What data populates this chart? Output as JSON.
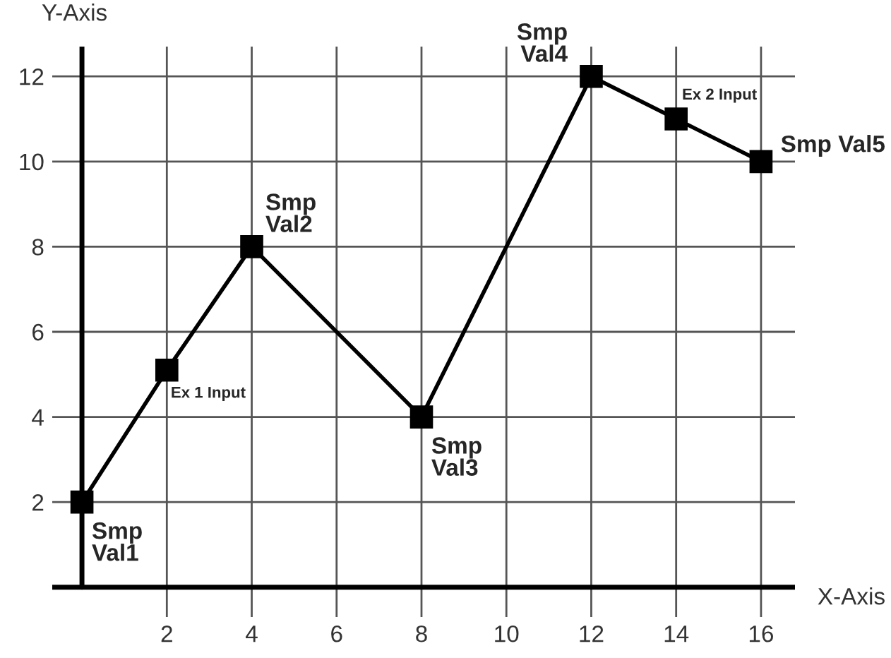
{
  "chart_data": {
    "type": "line",
    "xlabel": "X-Axis",
    "ylabel": "Y-Axis",
    "x": [
      0,
      2,
      4,
      8,
      12,
      14,
      16
    ],
    "series": [
      {
        "color": "#000000",
        "values": [
          2,
          5.1,
          8,
          4,
          12,
          11,
          10
        ]
      }
    ],
    "marker": "square",
    "line_style": "solid",
    "xlim": [
      -0.7,
      16.8
    ],
    "ylim": [
      -0.7,
      12.7
    ],
    "xticks": [
      2,
      4,
      6,
      8,
      10,
      12,
      14,
      16
    ],
    "yticks": [
      2,
      4,
      6,
      8,
      10,
      12
    ],
    "grid": true,
    "legend": false,
    "annotations": [
      {
        "text": "Smp\nVal1",
        "x": 0,
        "y": 2
      },
      {
        "text": "Ex 1 Input",
        "x": 2,
        "y": 5.1
      },
      {
        "text": "Smp\nVal2",
        "x": 4,
        "y": 8
      },
      {
        "text": "Smp\nVal3",
        "x": 8,
        "y": 4
      },
      {
        "text": "Smp\nVal4",
        "x": 12,
        "y": 12
      },
      {
        "text": "Ex 2 Input",
        "x": 14,
        "y": 11
      },
      {
        "text": "Smp Val5",
        "x": 16,
        "y": 10
      }
    ]
  }
}
